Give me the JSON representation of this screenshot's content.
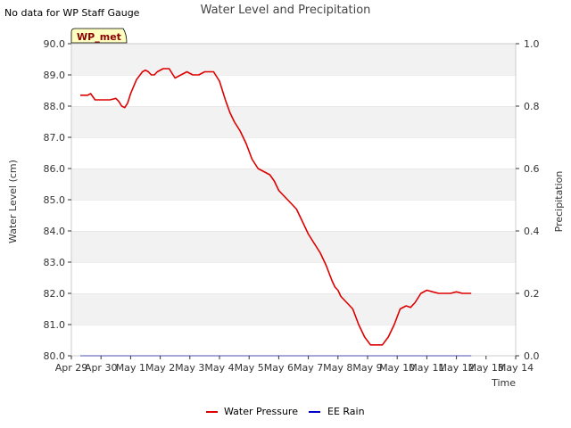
{
  "note": "No data for WP Staff Gauge",
  "badge": "WP_met",
  "chart_data": {
    "type": "line",
    "title": "Water Level and Precipitation",
    "xlabel": "Time",
    "ylabel_left": "Water Level (cm)",
    "ylabel_right": "Precipitation",
    "x_tick_labels": [
      "Apr 29",
      "Apr 30",
      "May 1",
      "May 2",
      "May 3",
      "May 4",
      "May 5",
      "May 6",
      "May 7",
      "May 8",
      "May 9",
      "May 10",
      "May 11",
      "May 12",
      "May 13",
      "May 14"
    ],
    "ylim_left": [
      80.0,
      90.0
    ],
    "y_ticks_left": [
      "80.0",
      "81.0",
      "82.0",
      "83.0",
      "84.0",
      "85.0",
      "86.0",
      "87.0",
      "88.0",
      "89.0",
      "90.0"
    ],
    "ylim_right": [
      0.0,
      1.0
    ],
    "y_ticks_right": [
      "0.0",
      "0.2",
      "0.4",
      "0.6",
      "0.8",
      "1.0"
    ],
    "grid": "horizontal bands",
    "legend_position": "bottom-center",
    "series": [
      {
        "name": "Water Pressure",
        "axis": "left",
        "color": "#dd0000",
        "x_days": [
          0.3,
          0.55,
          0.65,
          0.8,
          1.0,
          1.3,
          1.5,
          1.6,
          1.7,
          1.8,
          1.9,
          2.0,
          2.2,
          2.4,
          2.5,
          2.6,
          2.7,
          2.8,
          2.9,
          3.1,
          3.3,
          3.5,
          3.7,
          3.9,
          4.1,
          4.3,
          4.5,
          4.8,
          5.0,
          5.1,
          5.2,
          5.35,
          5.5,
          5.7,
          5.9,
          6.1,
          6.3,
          6.5,
          6.7,
          6.85,
          7.0,
          7.2,
          7.4,
          7.6,
          7.8,
          8.0,
          8.2,
          8.4,
          8.6,
          8.8,
          8.9,
          9.0,
          9.1,
          9.3,
          9.5,
          9.7,
          9.9,
          10.1,
          10.3,
          10.5,
          10.7,
          10.9,
          11.1,
          11.3,
          11.45,
          11.6,
          11.8,
          12.0,
          12.2,
          12.4,
          12.6,
          12.8,
          13.0,
          13.2,
          13.4,
          13.5
        ],
        "values": [
          88.35,
          88.35,
          88.4,
          88.2,
          88.2,
          88.2,
          88.25,
          88.15,
          88.0,
          87.95,
          88.1,
          88.4,
          88.85,
          89.1,
          89.15,
          89.1,
          89.0,
          89.0,
          89.1,
          89.2,
          89.2,
          88.9,
          89.0,
          89.1,
          89.0,
          89.0,
          89.1,
          89.1,
          88.8,
          88.5,
          88.2,
          87.8,
          87.5,
          87.2,
          86.8,
          86.3,
          86.0,
          85.9,
          85.8,
          85.6,
          85.3,
          85.1,
          84.9,
          84.7,
          84.3,
          83.9,
          83.6,
          83.3,
          82.9,
          82.4,
          82.2,
          82.1,
          81.9,
          81.7,
          81.5,
          81.0,
          80.6,
          80.35,
          80.35,
          80.35,
          80.6,
          81.0,
          81.5,
          81.6,
          81.55,
          81.7,
          82.0,
          82.1,
          82.05,
          82.0,
          82.0,
          82.0,
          82.05,
          82.0,
          82.0,
          82.0
        ]
      },
      {
        "name": "EE Rain",
        "axis": "right",
        "color": "#0000cc",
        "x_days": [
          0.3,
          13.5
        ],
        "values": [
          0.0,
          0.0
        ]
      }
    ]
  }
}
